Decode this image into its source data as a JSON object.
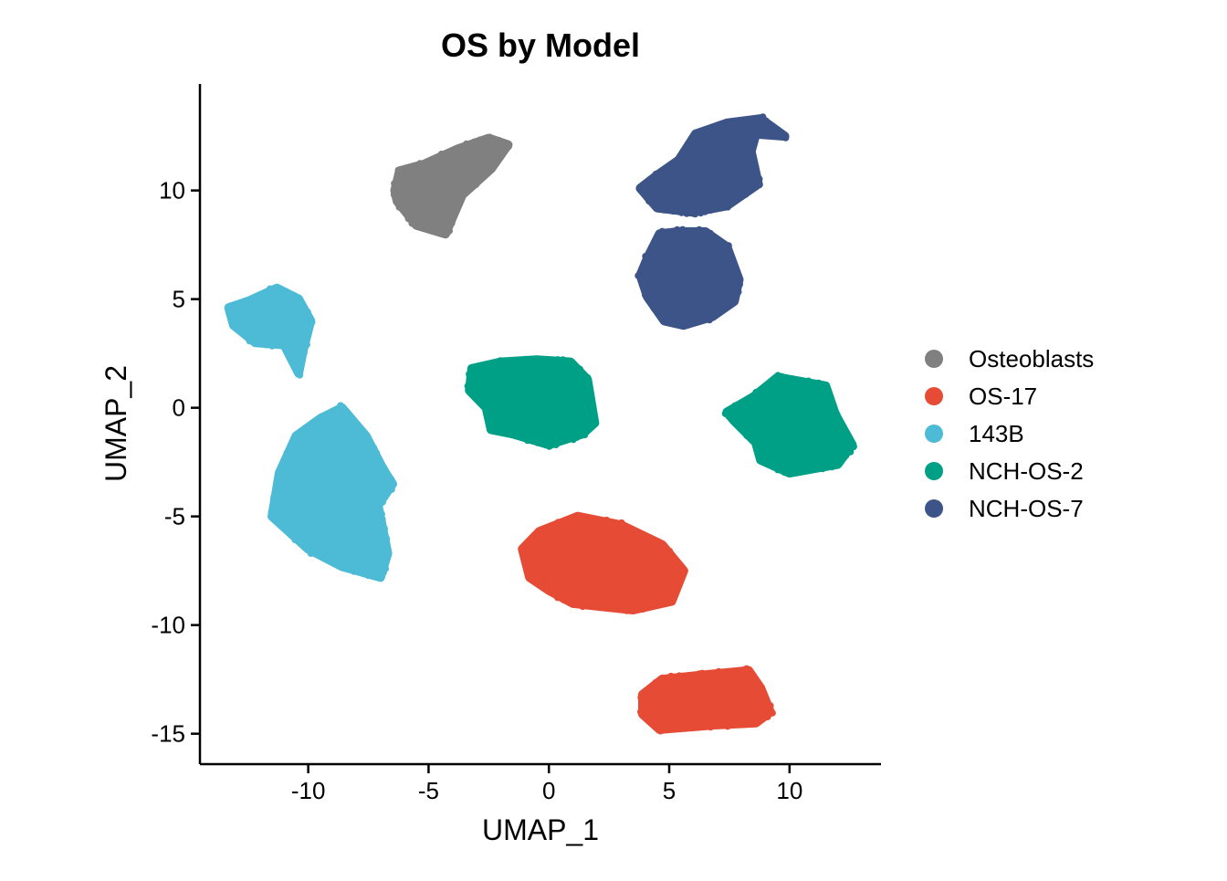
{
  "chart_data": {
    "type": "scatter",
    "title": "OS by Model",
    "xlabel": "UMAP_1",
    "ylabel": "UMAP_2",
    "xlim": [
      -14.5,
      13.8
    ],
    "ylim": [
      -16.4,
      14.9
    ],
    "x_ticks": [
      -10,
      -5,
      0,
      5,
      10
    ],
    "x_tick_labels": [
      "-10",
      "-5",
      "0",
      "5",
      "10"
    ],
    "y_ticks": [
      -15,
      -10,
      -5,
      0,
      5,
      10
    ],
    "y_tick_labels": [
      "-15",
      "-10",
      "-5",
      "0",
      "5",
      "10"
    ],
    "grid": false,
    "legend_position": "right",
    "series": [
      {
        "name": "Osteoblasts",
        "color": "#808080",
        "clusters": [
          {
            "polygon": [
              [
                -6.4,
                10.0
              ],
              [
                -6.2,
                10.9
              ],
              [
                -5.2,
                11.2
              ],
              [
                -3.8,
                11.9
              ],
              [
                -2.5,
                12.4
              ],
              [
                -1.7,
                12.1
              ],
              [
                -2.4,
                11.0
              ],
              [
                -3.6,
                9.8
              ],
              [
                -4.3,
                8.0
              ],
              [
                -5.5,
                8.4
              ],
              [
                -6.3,
                9.5
              ]
            ],
            "n": 300
          }
        ]
      },
      {
        "name": "OS-17",
        "color": "#E64B35",
        "clusters": [
          {
            "polygon": [
              [
                -1.1,
                -6.5
              ],
              [
                -0.4,
                -5.7
              ],
              [
                1.2,
                -5.0
              ],
              [
                3.0,
                -5.4
              ],
              [
                4.7,
                -6.3
              ],
              [
                5.6,
                -7.5
              ],
              [
                5.1,
                -8.9
              ],
              [
                3.5,
                -9.3
              ],
              [
                1.0,
                -9.0
              ],
              [
                0.0,
                -8.4
              ],
              [
                -0.8,
                -7.8
              ]
            ],
            "n": 320
          },
          {
            "polygon": [
              [
                3.9,
                -13.2
              ],
              [
                4.7,
                -12.5
              ],
              [
                6.4,
                -12.3
              ],
              [
                8.3,
                -12.1
              ],
              [
                8.8,
                -12.9
              ],
              [
                9.2,
                -14.0
              ],
              [
                8.6,
                -14.5
              ],
              [
                6.8,
                -14.6
              ],
              [
                4.6,
                -14.8
              ],
              [
                3.9,
                -14.1
              ]
            ],
            "n": 260
          }
        ]
      },
      {
        "name": "143B",
        "color": "#4DBBD5",
        "clusters": [
          {
            "polygon": [
              [
                -13.3,
                4.6
              ],
              [
                -12.5,
                4.9
              ],
              [
                -11.3,
                5.5
              ],
              [
                -10.4,
                5.0
              ],
              [
                -9.9,
                4.0
              ],
              [
                -10.2,
                2.7
              ],
              [
                -10.4,
                1.6
              ],
              [
                -11.0,
                2.9
              ],
              [
                -12.2,
                3.0
              ],
              [
                -13.1,
                3.8
              ]
            ],
            "n": 200
          },
          {
            "polygon": [
              [
                -11.5,
                -5.0
              ],
              [
                -11.2,
                -3.0
              ],
              [
                -10.5,
                -1.3
              ],
              [
                -9.5,
                -0.5
              ],
              [
                -8.6,
                0.0
              ],
              [
                -7.6,
                -1.3
              ],
              [
                -6.9,
                -2.8
              ],
              [
                -6.5,
                -3.5
              ],
              [
                -7.1,
                -4.5
              ],
              [
                -6.7,
                -6.7
              ],
              [
                -7.0,
                -7.8
              ],
              [
                -8.6,
                -7.3
              ],
              [
                -10.0,
                -6.5
              ]
            ],
            "n": 420
          }
        ]
      },
      {
        "name": "NCH-OS-2",
        "color": "#00A087",
        "clusters": [
          {
            "polygon": [
              [
                -3.2,
                1.8
              ],
              [
                -2.0,
                2.1
              ],
              [
                -0.5,
                2.2
              ],
              [
                0.9,
                2.1
              ],
              [
                1.6,
                1.3
              ],
              [
                1.9,
                -0.7
              ],
              [
                1.4,
                -1.2
              ],
              [
                0.0,
                -1.7
              ],
              [
                -1.5,
                -1.2
              ],
              [
                -2.4,
                -1.0
              ],
              [
                -2.6,
                0.0
              ],
              [
                -3.3,
                0.8
              ]
            ],
            "n": 320
          },
          {
            "polygon": [
              [
                7.4,
                -0.2
              ],
              [
                8.5,
                0.5
              ],
              [
                9.5,
                1.4
              ],
              [
                11.5,
                1.0
              ],
              [
                11.9,
                -0.3
              ],
              [
                12.6,
                -1.7
              ],
              [
                12.0,
                -2.6
              ],
              [
                10.0,
                -3.0
              ],
              [
                8.8,
                -2.4
              ],
              [
                8.6,
                -1.6
              ],
              [
                7.7,
                -0.6
              ]
            ],
            "n": 320
          }
        ]
      },
      {
        "name": "NCH-OS-7",
        "color": "#3C5488",
        "clusters": [
          {
            "polygon": [
              [
                3.8,
                10.1
              ],
              [
                4.5,
                10.7
              ],
              [
                5.4,
                11.4
              ],
              [
                6.1,
                12.6
              ],
              [
                7.4,
                13.1
              ],
              [
                8.8,
                13.3
              ],
              [
                9.8,
                12.5
              ],
              [
                8.6,
                12.6
              ],
              [
                8.4,
                11.8
              ],
              [
                8.7,
                10.3
              ],
              [
                7.4,
                9.3
              ],
              [
                6.0,
                9.0
              ],
              [
                4.5,
                9.2
              ]
            ],
            "n": 320
          },
          {
            "polygon": [
              [
                3.8,
                6.1
              ],
              [
                4.1,
                6.9
              ],
              [
                4.6,
                8.0
              ],
              [
                5.4,
                8.1
              ],
              [
                6.5,
                8.1
              ],
              [
                7.4,
                7.4
              ],
              [
                7.9,
                5.9
              ],
              [
                7.7,
                4.9
              ],
              [
                6.8,
                4.2
              ],
              [
                5.6,
                3.8
              ],
              [
                4.8,
                4.0
              ],
              [
                4.1,
                5.1
              ]
            ],
            "n": 340
          }
        ]
      }
    ]
  }
}
